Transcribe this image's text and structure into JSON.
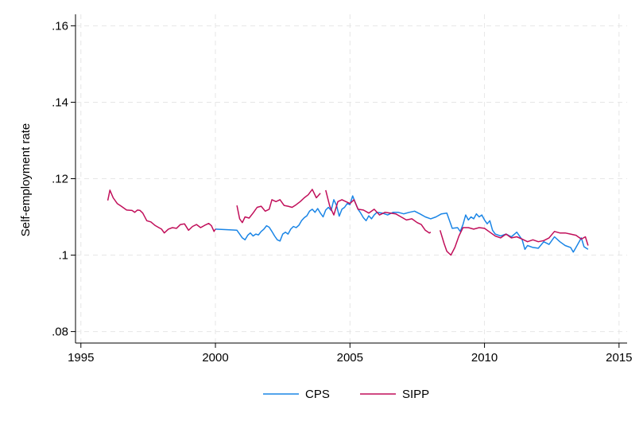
{
  "chart_data": {
    "type": "line",
    "title": "",
    "xlabel": "",
    "ylabel": "Self-employment rate",
    "xlim": [
      1994.8,
      2015.3
    ],
    "ylim": [
      0.077,
      0.163
    ],
    "x_ticks": [
      1995,
      2000,
      2005,
      2010,
      2015
    ],
    "x_tick_labels": [
      "1995",
      "2000",
      "2005",
      "2010",
      "2015"
    ],
    "y_ticks": [
      0.08,
      0.1,
      0.12,
      0.14,
      0.16
    ],
    "y_tick_labels": [
      ".08",
      ".1",
      ".12",
      ".14",
      ".16"
    ],
    "grid": true,
    "legend_position": "bottom",
    "series": [
      {
        "name": "CPS",
        "color": "#1a85e6",
        "segments": [
          [
            [
              2000.0,
              0.1068
            ],
            [
              2000.3,
              0.1067
            ],
            [
              2000.6,
              0.1066
            ],
            [
              2000.8,
              0.1065
            ],
            [
              2000.9,
              0.1055
            ],
            [
              2001.0,
              0.1045
            ],
            [
              2001.1,
              0.104
            ],
            [
              2001.2,
              0.1052
            ],
            [
              2001.3,
              0.1058
            ],
            [
              2001.4,
              0.105
            ],
            [
              2001.5,
              0.1055
            ],
            [
              2001.6,
              0.1053
            ],
            [
              2001.7,
              0.1062
            ],
            [
              2001.8,
              0.1068
            ],
            [
              2001.9,
              0.1077
            ],
            [
              2002.0,
              0.1073
            ],
            [
              2002.1,
              0.1062
            ],
            [
              2002.2,
              0.105
            ],
            [
              2002.3,
              0.104
            ],
            [
              2002.4,
              0.1037
            ],
            [
              2002.5,
              0.1055
            ],
            [
              2002.6,
              0.106
            ],
            [
              2002.7,
              0.1055
            ],
            [
              2002.8,
              0.1068
            ],
            [
              2002.9,
              0.1075
            ],
            [
              2003.0,
              0.1072
            ],
            [
              2003.1,
              0.1078
            ],
            [
              2003.2,
              0.109
            ],
            [
              2003.3,
              0.1098
            ],
            [
              2003.4,
              0.1103
            ],
            [
              2003.5,
              0.1115
            ],
            [
              2003.6,
              0.112
            ],
            [
              2003.7,
              0.1112
            ],
            [
              2003.8,
              0.1122
            ],
            [
              2003.9,
              0.111
            ],
            [
              2004.0,
              0.11
            ],
            [
              2004.1,
              0.1118
            ],
            [
              2004.2,
              0.1125
            ],
            [
              2004.3,
              0.1117
            ],
            [
              2004.4,
              0.1145
            ],
            [
              2004.5,
              0.113
            ],
            [
              2004.6,
              0.1102
            ],
            [
              2004.7,
              0.112
            ],
            [
              2004.8,
              0.1125
            ],
            [
              2004.9,
              0.1135
            ],
            [
              2005.0,
              0.1132
            ],
            [
              2005.1,
              0.1155
            ],
            [
              2005.2,
              0.1137
            ],
            [
              2005.3,
              0.112
            ],
            [
              2005.4,
              0.111
            ],
            [
              2005.5,
              0.1098
            ],
            [
              2005.6,
              0.109
            ],
            [
              2005.7,
              0.1103
            ],
            [
              2005.8,
              0.1095
            ],
            [
              2005.9,
              0.1105
            ],
            [
              2006.0,
              0.1112
            ],
            [
              2006.2,
              0.111
            ],
            [
              2006.4,
              0.1105
            ],
            [
              2006.6,
              0.1112
            ],
            [
              2006.8,
              0.1112
            ],
            [
              2007.0,
              0.1108
            ],
            [
              2007.2,
              0.1112
            ],
            [
              2007.4,
              0.1115
            ],
            [
              2007.6,
              0.1108
            ],
            [
              2007.8,
              0.11
            ],
            [
              2008.0,
              0.1095
            ],
            [
              2008.2,
              0.11
            ],
            [
              2008.4,
              0.1108
            ],
            [
              2008.6,
              0.111
            ],
            [
              2008.8,
              0.107
            ],
            [
              2009.0,
              0.1072
            ],
            [
              2009.1,
              0.1062
            ],
            [
              2009.2,
              0.108
            ],
            [
              2009.3,
              0.1105
            ],
            [
              2009.4,
              0.1092
            ],
            [
              2009.5,
              0.11
            ],
            [
              2009.6,
              0.1095
            ],
            [
              2009.7,
              0.1108
            ],
            [
              2009.8,
              0.11
            ],
            [
              2009.9,
              0.1105
            ],
            [
              2010.0,
              0.1092
            ],
            [
              2010.1,
              0.1082
            ],
            [
              2010.2,
              0.109
            ],
            [
              2010.3,
              0.1065
            ],
            [
              2010.4,
              0.1055
            ],
            [
              2010.6,
              0.105
            ],
            [
              2010.8,
              0.1055
            ],
            [
              2011.0,
              0.1048
            ],
            [
              2011.2,
              0.106
            ],
            [
              2011.4,
              0.104
            ],
            [
              2011.5,
              0.1015
            ],
            [
              2011.6,
              0.1025
            ],
            [
              2011.8,
              0.102
            ],
            [
              2012.0,
              0.1018
            ],
            [
              2012.2,
              0.1035
            ],
            [
              2012.4,
              0.1028
            ],
            [
              2012.6,
              0.1048
            ],
            [
              2012.8,
              0.1035
            ],
            [
              2013.0,
              0.1025
            ],
            [
              2013.2,
              0.102
            ],
            [
              2013.3,
              0.1008
            ],
            [
              2013.4,
              0.102
            ],
            [
              2013.6,
              0.1045
            ],
            [
              2013.7,
              0.1022
            ],
            [
              2013.85,
              0.1015
            ]
          ]
        ]
      },
      {
        "name": "SIPP",
        "color": "#c10f5a",
        "segments": [
          [
            [
              1996.0,
              0.1143
            ],
            [
              1996.08,
              0.117
            ],
            [
              1996.2,
              0.115
            ],
            [
              1996.35,
              0.1135
            ],
            [
              1996.5,
              0.1128
            ],
            [
              1996.7,
              0.1118
            ],
            [
              1996.9,
              0.1117
            ],
            [
              1997.0,
              0.1112
            ],
            [
              1997.1,
              0.1118
            ],
            [
              1997.2,
              0.1117
            ],
            [
              1997.3,
              0.111
            ],
            [
              1997.45,
              0.109
            ],
            [
              1997.6,
              0.1087
            ],
            [
              1997.75,
              0.1078
            ],
            [
              1997.9,
              0.1072
            ],
            [
              1998.0,
              0.1068
            ],
            [
              1998.1,
              0.1058
            ],
            [
              1998.25,
              0.1068
            ],
            [
              1998.4,
              0.1072
            ],
            [
              1998.55,
              0.107
            ],
            [
              1998.7,
              0.108
            ],
            [
              1998.85,
              0.1082
            ],
            [
              1999.0,
              0.1065
            ],
            [
              1999.15,
              0.1075
            ],
            [
              1999.3,
              0.108
            ],
            [
              1999.45,
              0.1072
            ],
            [
              1999.6,
              0.1078
            ],
            [
              1999.75,
              0.1083
            ],
            [
              1999.85,
              0.1077
            ],
            [
              1999.95,
              0.1062
            ],
            [
              2000.0,
              0.1068
            ]
          ],
          [
            [
              2000.8,
              0.113
            ],
            [
              2000.9,
              0.1095
            ],
            [
              2001.0,
              0.1085
            ],
            [
              2001.1,
              0.11
            ],
            [
              2001.25,
              0.1097
            ],
            [
              2001.4,
              0.111
            ],
            [
              2001.55,
              0.1125
            ],
            [
              2001.7,
              0.1128
            ],
            [
              2001.85,
              0.1115
            ],
            [
              2002.0,
              0.112
            ],
            [
              2002.1,
              0.1145
            ],
            [
              2002.25,
              0.114
            ],
            [
              2002.4,
              0.1145
            ],
            [
              2002.55,
              0.113
            ],
            [
              2002.7,
              0.1128
            ],
            [
              2002.85,
              0.1125
            ],
            [
              2003.0,
              0.1132
            ],
            [
              2003.15,
              0.114
            ],
            [
              2003.3,
              0.115
            ],
            [
              2003.45,
              0.1158
            ],
            [
              2003.6,
              0.1172
            ],
            [
              2003.75,
              0.115
            ],
            [
              2003.9,
              0.1162
            ]
          ],
          [
            [
              2004.1,
              0.117
            ],
            [
              2004.25,
              0.1128
            ],
            [
              2004.4,
              0.1105
            ],
            [
              2004.55,
              0.114
            ],
            [
              2004.7,
              0.1145
            ],
            [
              2004.85,
              0.114
            ],
            [
              2005.0,
              0.1135
            ],
            [
              2005.15,
              0.1145
            ],
            [
              2005.3,
              0.112
            ],
            [
              2005.5,
              0.1118
            ],
            [
              2005.7,
              0.111
            ],
            [
              2005.9,
              0.112
            ],
            [
              2006.1,
              0.1105
            ],
            [
              2006.3,
              0.1112
            ],
            [
              2006.5,
              0.111
            ],
            [
              2006.7,
              0.1108
            ],
            [
              2006.9,
              0.11
            ],
            [
              2007.1,
              0.1092
            ],
            [
              2007.3,
              0.1095
            ],
            [
              2007.5,
              0.1085
            ],
            [
              2007.65,
              0.108
            ],
            [
              2007.8,
              0.1065
            ],
            [
              2007.95,
              0.1058
            ],
            [
              2008.0,
              0.106
            ]
          ],
          [
            [
              2008.35,
              0.1065
            ],
            [
              2008.5,
              0.103
            ],
            [
              2008.6,
              0.101
            ],
            [
              2008.75,
              0.1
            ],
            [
              2008.9,
              0.102
            ],
            [
              2009.05,
              0.105
            ],
            [
              2009.2,
              0.1072
            ],
            [
              2009.4,
              0.1072
            ],
            [
              2009.6,
              0.1068
            ],
            [
              2009.8,
              0.1072
            ],
            [
              2010.0,
              0.107
            ],
            [
              2010.2,
              0.106
            ],
            [
              2010.4,
              0.105
            ],
            [
              2010.6,
              0.1045
            ],
            [
              2010.8,
              0.1055
            ],
            [
              2011.0,
              0.1045
            ],
            [
              2011.2,
              0.1048
            ],
            [
              2011.4,
              0.1042
            ],
            [
              2011.6,
              0.1035
            ],
            [
              2011.8,
              0.104
            ],
            [
              2012.0,
              0.1035
            ],
            [
              2012.2,
              0.1038
            ],
            [
              2012.4,
              0.1045
            ],
            [
              2012.6,
              0.1062
            ],
            [
              2012.8,
              0.1058
            ],
            [
              2013.0,
              0.1058
            ],
            [
              2013.2,
              0.1055
            ],
            [
              2013.4,
              0.1052
            ],
            [
              2013.6,
              0.1042
            ],
            [
              2013.75,
              0.1048
            ],
            [
              2013.85,
              0.1025
            ]
          ]
        ]
      }
    ]
  }
}
